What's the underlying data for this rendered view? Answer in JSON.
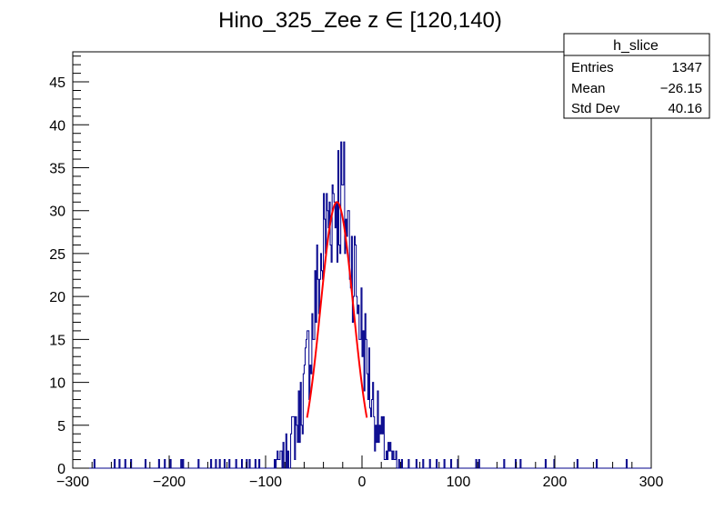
{
  "chart_data": {
    "type": "histogram",
    "title": "Hino_325_Zee z  ∈ [120,140)",
    "xlim": [
      -300,
      300
    ],
    "ylim": [
      0,
      48.5
    ],
    "x_ticks": [
      -300,
      -200,
      -100,
      0,
      100,
      200,
      300
    ],
    "x_tick_labels": [
      "−300",
      "−200",
      "−100",
      "0",
      "100",
      "200",
      "300"
    ],
    "y_ticks": [
      0,
      5,
      10,
      15,
      20,
      25,
      30,
      35,
      40,
      45
    ],
    "y_tick_labels": [
      "0",
      "5",
      "10",
      "15",
      "20",
      "25",
      "30",
      "35",
      "40",
      "45"
    ],
    "grid": false,
    "colors": {
      "histogram": "#00008b",
      "fit": "#ff0000",
      "frame": "#000000"
    },
    "stats_box": {
      "placement": "top-right",
      "title": "h_slice",
      "rows": [
        {
          "label": "Entries",
          "value": "1347"
        },
        {
          "label": "Mean",
          "value": "−26.15"
        },
        {
          "label": "Std Dev",
          "value": "40.16"
        }
      ]
    },
    "series": [
      {
        "kind": "histogram-approx",
        "center": -26.15,
        "sigma": 22,
        "peak": 32,
        "bin_width": 1,
        "sparse_tail_bins": [
          -278,
          -257,
          -252,
          -246,
          -240,
          -225,
          -211,
          -205,
          -199,
          -188,
          -186,
          -170,
          -157,
          -152,
          -148,
          -143,
          -138,
          -131,
          -125,
          -120,
          -117,
          -111,
          -107,
          29,
          35,
          41,
          48,
          56,
          63,
          70,
          77,
          85,
          92,
          99,
          118,
          121,
          147,
          159,
          164,
          190,
          199,
          223,
          243,
          274
        ]
      },
      {
        "kind": "fit",
        "function": "gaus",
        "amplitude": 31,
        "mean": -26,
        "sigma": 17,
        "x_range": [
          -57,
          5
        ]
      }
    ]
  }
}
